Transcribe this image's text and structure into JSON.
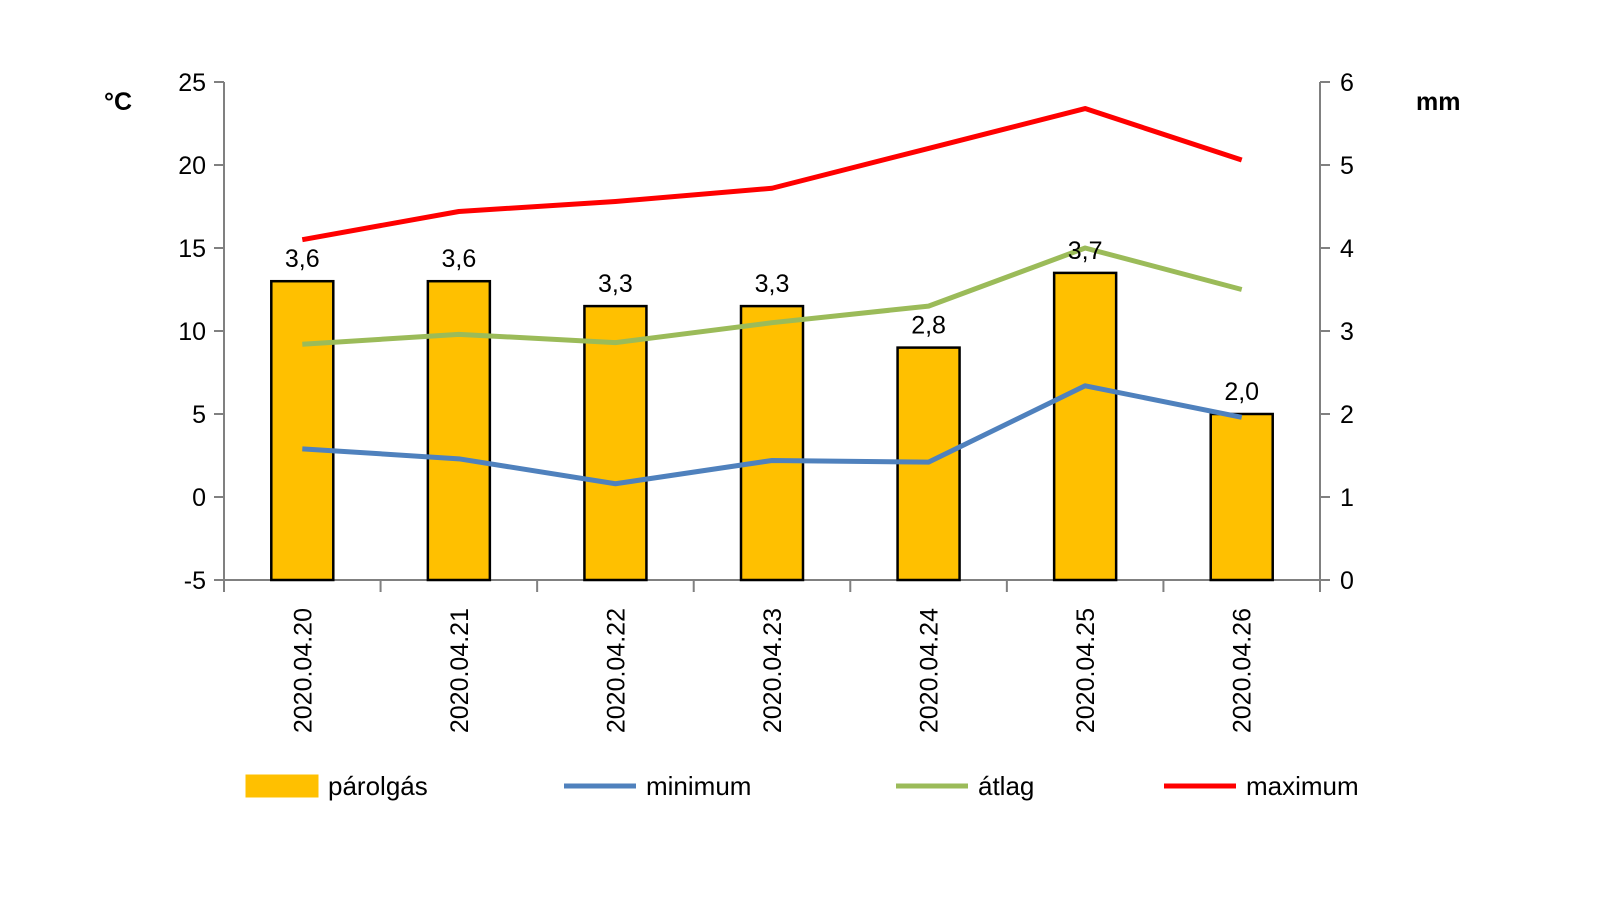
{
  "chart_data": {
    "type": "bar",
    "categories": [
      "2020.04.20",
      "2020.04.21",
      "2020.04.22",
      "2020.04.23",
      "2020.04.24",
      "2020.04.25",
      "2020.04.26"
    ],
    "y_left": {
      "unit": "°C",
      "range": [
        -5,
        25
      ],
      "ticks": [
        "-5",
        "0",
        "5",
        "10",
        "15",
        "20",
        "25"
      ]
    },
    "y_right": {
      "unit": "mm",
      "range": [
        0,
        6
      ],
      "ticks": [
        "0",
        "1",
        "2",
        "3",
        "4",
        "5",
        "6"
      ]
    },
    "series": [
      {
        "name": "párolgás",
        "kind": "bar",
        "axis": "right",
        "color": "#FFC000",
        "values": [
          3.6,
          3.6,
          3.3,
          3.3,
          2.8,
          3.7,
          2.0
        ],
        "labels": [
          "3,6",
          "3,6",
          "3,3",
          "3,3",
          "2,8",
          "3,7",
          "2,0"
        ]
      },
      {
        "name": "minimum",
        "kind": "line",
        "axis": "left",
        "color": "#4F81BD",
        "values": [
          2.9,
          2.3,
          0.8,
          2.2,
          2.1,
          6.7,
          4.8
        ]
      },
      {
        "name": "átlag",
        "kind": "line",
        "axis": "left",
        "color": "#9BBB59",
        "values": [
          9.2,
          9.8,
          9.3,
          10.5,
          11.5,
          15.0,
          12.5
        ]
      },
      {
        "name": "maximum",
        "kind": "line",
        "axis": "left",
        "color": "#FF0000",
        "values": [
          15.5,
          17.2,
          17.8,
          18.6,
          21.0,
          23.4,
          20.3
        ]
      }
    ],
    "grid": false,
    "legend_position": "bottom"
  }
}
